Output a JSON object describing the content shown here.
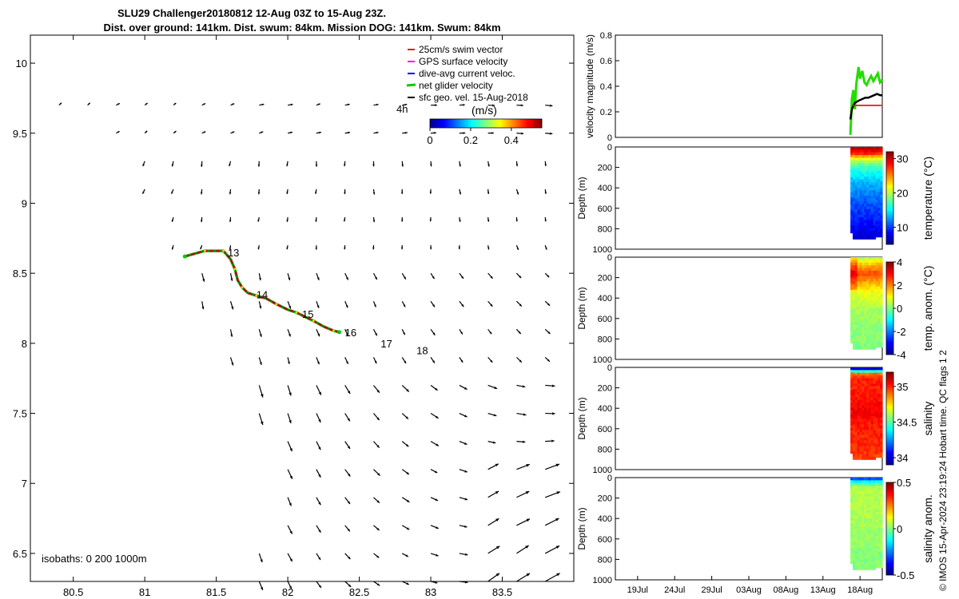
{
  "figure": {
    "title_line1": "SLU29 Challenger20180812 12-Aug 03Z to 15-Aug 23Z.",
    "title_line2": "Dist. over ground: 141km. Dist. swum: 84km. Mission DOG: 141km. Swum: 84km",
    "credit": "© IMOS 15-Apr-2024 23:19:24 Hobart time. QC flags 1  2"
  },
  "chart_data": [
    {
      "type": "scatter",
      "id": "map",
      "xlim": [
        80.2,
        84.0
      ],
      "ylim": [
        6.3,
        10.2
      ],
      "xticks": [
        80.5,
        81,
        81.5,
        82,
        82.5,
        83,
        83.5
      ],
      "xtick_labels": [
        "80.5",
        "81",
        "81.5",
        "82",
        "82.5",
        "83",
        "83.5"
      ],
      "yticks": [
        6.5,
        7,
        7.5,
        8,
        8.5,
        9,
        9.5,
        10
      ],
      "ytick_labels": [
        "6.5",
        "7",
        "7.5",
        "8",
        "8.5",
        "9",
        "9.5",
        "10"
      ],
      "legend": [
        {
          "label": "25cm/s swim vector",
          "color": "#e41a1c"
        },
        {
          "label": "GPS surface velocity",
          "color": "#ff00ff"
        },
        {
          "label": "dive-avg current veloc.",
          "color": "#0000ff"
        },
        {
          "label": "net glider velocity",
          "color": "#00cc00"
        },
        {
          "label": "sfc geo. vel. 15-Aug-2018",
          "color": "#000000"
        }
      ],
      "colorbar": {
        "label": "(m/s)",
        "range": [
          0,
          0.55
        ],
        "ticks": [
          0,
          0.2,
          0.4
        ],
        "tick_labels": [
          "0",
          "0.2",
          "0.4"
        ]
      },
      "time_label": "4h",
      "isobaths_label": "isobaths: 0   200  1000m",
      "day_labels": [
        {
          "text": "13",
          "lon": 81.58,
          "lat": 8.65
        },
        {
          "text": "14",
          "lon": 81.78,
          "lat": 8.35
        },
        {
          "text": "15",
          "lon": 82.1,
          "lat": 8.21
        },
        {
          "text": "16",
          "lon": 82.4,
          "lat": 8.08
        },
        {
          "text": "17",
          "lon": 82.65,
          "lat": 8.0
        },
        {
          "text": "18",
          "lon": 82.9,
          "lat": 7.95
        }
      ],
      "track": [
        [
          81.28,
          8.62
        ],
        [
          81.35,
          8.64
        ],
        [
          81.42,
          8.66
        ],
        [
          81.5,
          8.66
        ],
        [
          81.55,
          8.66
        ],
        [
          81.6,
          8.6
        ],
        [
          81.63,
          8.53
        ],
        [
          81.65,
          8.45
        ],
        [
          81.68,
          8.4
        ],
        [
          81.72,
          8.36
        ],
        [
          81.78,
          8.34
        ],
        [
          81.85,
          8.32
        ],
        [
          81.92,
          8.28
        ],
        [
          82.0,
          8.24
        ],
        [
          82.06,
          8.22
        ],
        [
          82.12,
          8.19
        ],
        [
          82.18,
          8.16
        ],
        [
          82.25,
          8.12
        ],
        [
          82.32,
          8.09
        ],
        [
          82.36,
          8.08
        ]
      ]
    },
    {
      "type": "line",
      "id": "velocity",
      "ylabel": "velocity magnitude (m/s)",
      "ylim": [
        0,
        0.8
      ],
      "yticks": [
        0,
        0.2,
        0.4,
        0.6,
        0.8
      ],
      "ytick_labels": [
        "0",
        "0.2",
        "0.4",
        "0.6",
        "0.8"
      ],
      "xlim": [
        0,
        36
      ],
      "series": [
        {
          "name": "net glider velocity",
          "color": "#22dd00",
          "x": [
            31.7,
            31.9,
            32.1,
            32.3,
            32.5,
            32.8,
            33.0,
            33.3,
            33.6,
            33.9,
            34.2,
            34.5,
            34.8,
            35.1,
            35.4,
            35.7,
            36.0
          ],
          "y": [
            0.02,
            0.3,
            0.37,
            0.22,
            0.42,
            0.55,
            0.46,
            0.52,
            0.43,
            0.41,
            0.45,
            0.48,
            0.44,
            0.47,
            0.5,
            0.43,
            0.45
          ]
        },
        {
          "name": "geostrophic velocity",
          "color": "#000000",
          "x": [
            31.7,
            31.9,
            32.1,
            32.3,
            32.6,
            32.9,
            33.3,
            33.7,
            34.1,
            34.5,
            34.9,
            35.3,
            35.7,
            36.0
          ],
          "y": [
            0.14,
            0.22,
            0.25,
            0.27,
            0.28,
            0.29,
            0.3,
            0.31,
            0.31,
            0.32,
            0.33,
            0.34,
            0.33,
            0.33
          ]
        },
        {
          "name": "swim speed",
          "color": "#e41a1c",
          "x": [
            32.2,
            32.4,
            32.6,
            32.8,
            33.0,
            33.2,
            33.4,
            33.6,
            33.8,
            34.0,
            34.2,
            34.4,
            34.6,
            34.8,
            35.0,
            35.2,
            35.4,
            35.6,
            35.8
          ],
          "y": [
            0.25,
            0.25,
            0.25,
            0.25,
            0.25,
            0.25,
            0.25,
            0.25,
            0.25,
            0.25,
            0.25,
            0.25,
            0.25,
            0.25,
            0.25,
            0.25,
            0.25,
            0.25,
            0.25
          ]
        }
      ]
    },
    {
      "type": "heatmap",
      "id": "temperature",
      "ylabel": "Depth (m)",
      "yticks": [
        0,
        200,
        400,
        600,
        800,
        1000
      ],
      "ytick_labels": [
        "0",
        "200",
        "400",
        "600",
        "800",
        "1000"
      ],
      "ylim": [
        0,
        1000
      ],
      "colorbar": {
        "label": "temperature (°C)",
        "range": [
          5,
          32
        ],
        "ticks": [
          10,
          20,
          30
        ],
        "tick_labels": [
          "10",
          "20",
          "30"
        ]
      },
      "profile_x": [
        31.7,
        36.0
      ],
      "max_depth": 900,
      "values_by_depth": [
        [
          0,
          30
        ],
        [
          20,
          29.5
        ],
        [
          50,
          28
        ],
        [
          80,
          24
        ],
        [
          120,
          20
        ],
        [
          180,
          17
        ],
        [
          250,
          15
        ],
        [
          350,
          13
        ],
        [
          500,
          11
        ],
        [
          650,
          9.5
        ],
        [
          800,
          8
        ],
        [
          900,
          7
        ]
      ]
    },
    {
      "type": "heatmap",
      "id": "temp_anomaly",
      "ylabel": "Depth (m)",
      "yticks": [
        0,
        200,
        400,
        600,
        800,
        1000
      ],
      "ytick_labels": [
        "0",
        "200",
        "400",
        "600",
        "800",
        "1000"
      ],
      "ylim": [
        0,
        1000
      ],
      "colorbar": {
        "label": "temp. anom. (°C)",
        "range": [
          -4,
          4
        ],
        "ticks": [
          -4,
          -2,
          0,
          2,
          4
        ],
        "tick_labels": [
          "-4",
          "-2",
          "0",
          "2",
          "4"
        ]
      },
      "profile_x": [
        31.7,
        36.0
      ],
      "max_depth": 900,
      "values_by_depth": [
        [
          0,
          0.5
        ],
        [
          60,
          1.5
        ],
        [
          150,
          2.5
        ],
        [
          250,
          1.5
        ],
        [
          350,
          0.8
        ],
        [
          500,
          0.3
        ],
        [
          700,
          0.1
        ],
        [
          900,
          0
        ]
      ]
    },
    {
      "type": "heatmap",
      "id": "salinity",
      "ylabel": "Depth (m)",
      "yticks": [
        0,
        200,
        400,
        600,
        800,
        1000
      ],
      "ytick_labels": [
        "0",
        "200",
        "400",
        "600",
        "800",
        "1000"
      ],
      "ylim": [
        0,
        1000
      ],
      "colorbar": {
        "label": "salinity",
        "range": [
          33.9,
          35.2
        ],
        "ticks": [
          34,
          34.5,
          35
        ],
        "tick_labels": [
          "34",
          "34.5",
          "35"
        ]
      },
      "profile_x": [
        31.7,
        36.0
      ],
      "max_depth": 900,
      "values_by_depth": [
        [
          0,
          34.0
        ],
        [
          20,
          34.3
        ],
        [
          50,
          34.9
        ],
        [
          100,
          35.0
        ],
        [
          200,
          35.0
        ],
        [
          400,
          35.05
        ],
        [
          600,
          35.0
        ],
        [
          800,
          34.98
        ],
        [
          900,
          34.95
        ]
      ]
    },
    {
      "type": "heatmap",
      "id": "salinity_anomaly",
      "ylabel": "Depth (m)",
      "yticks": [
        0,
        200,
        400,
        600,
        800,
        1000
      ],
      "ytick_labels": [
        "0",
        "200",
        "400",
        "600",
        "800",
        "1000"
      ],
      "ylim": [
        0,
        1000
      ],
      "colorbar": {
        "label": "salinity anom.",
        "range": [
          -0.5,
          0.5
        ],
        "ticks": [
          -0.5,
          0,
          0.5
        ],
        "tick_labels": [
          "-0.5",
          "0",
          "0.5"
        ]
      },
      "profile_x": [
        31.7,
        36.0
      ],
      "max_depth": 900,
      "values_by_depth": [
        [
          0,
          -0.3
        ],
        [
          30,
          -0.1
        ],
        [
          80,
          0.05
        ],
        [
          300,
          0.05
        ],
        [
          600,
          0.02
        ],
        [
          900,
          0.0
        ]
      ],
      "xticks": [
        3,
        8,
        13,
        18,
        23,
        28,
        33
      ],
      "xtick_labels": [
        "19Jul",
        "24Jul",
        "29Jul",
        "03Aug",
        "08Aug",
        "13Aug",
        "18Aug"
      ]
    }
  ]
}
